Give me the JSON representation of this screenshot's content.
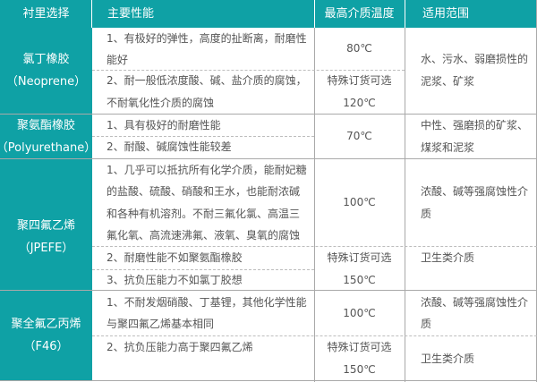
{
  "colors": {
    "header_bg": "#0fa1a5",
    "text": "#555555",
    "border": "#a9a9a9"
  },
  "header": [
    "衬里选择",
    "主要性能",
    "最高介质温度",
    "适用范围"
  ],
  "rows": [
    {
      "lining": [
        "氯丁橡胶",
        "（Neoprene）"
      ],
      "props": [
        [
          "1、有极好的弹性，高度的扯断离，耐磨性",
          "能好"
        ],
        [
          "2、耐一般低浓度酸、碱、盐介质的腐蚀，",
          "不耐氧化性介质的腐蚀"
        ]
      ],
      "temp": [
        [
          "80℃"
        ],
        [
          "特殊订货可选",
          "120℃"
        ]
      ],
      "scope": [
        "水、污水、弱磨损性的",
        "泥浆、矿浆"
      ]
    },
    {
      "lining": [
        "聚氨酯橡胶",
        "（Polyurethane）"
      ],
      "props": [
        [
          "1、具有极好的耐磨性能"
        ],
        [
          "2、耐酸、碱腐蚀性能较差"
        ]
      ],
      "temp": [
        [
          "70℃"
        ]
      ],
      "scope": [
        "中性、强磨损的矿浆、",
        "煤浆和泥浆"
      ]
    },
    {
      "lining": [
        "聚四氟乙烯",
        "（JPEFE）"
      ],
      "props": [
        [
          "1、几乎可以抵抗所有化学介质，能耐妃糖",
          "的盐酸、硫酸、硝酸和王水，也能耐浓碱",
          "和各种有机溶剂。不耐三氟化氯、高温三",
          "氟化氧、高流速沸氟、液氧、臭氧的腐蚀"
        ],
        [
          "2、耐磨性能不如聚氨酯橡胶"
        ],
        [
          "3、抗负压能力不如氯丁胶想"
        ]
      ],
      "temp": [
        [
          "100℃"
        ],
        [
          "特殊订货可选",
          "150℃"
        ]
      ],
      "scope": [
        [
          "浓酸、碱等强腐蚀性介",
          "质"
        ],
        [
          "卫生类介质"
        ]
      ]
    },
    {
      "lining": [
        "聚全氟乙丙烯",
        "（F46）"
      ],
      "props": [
        [
          "1、不耐发烟硝酸、丁基锂，其他化学性能",
          "与聚四氟乙烯基本相同"
        ],
        [
          "2、抗负压能力高于聚四氟乙烯"
        ]
      ],
      "temp": [
        [
          "100℃"
        ],
        [
          "特殊订货可选",
          "150℃"
        ]
      ],
      "scope": [
        [
          "浓酸、碱等强腐蚀性介",
          "质"
        ],
        [
          "卫生类介质"
        ]
      ]
    }
  ]
}
